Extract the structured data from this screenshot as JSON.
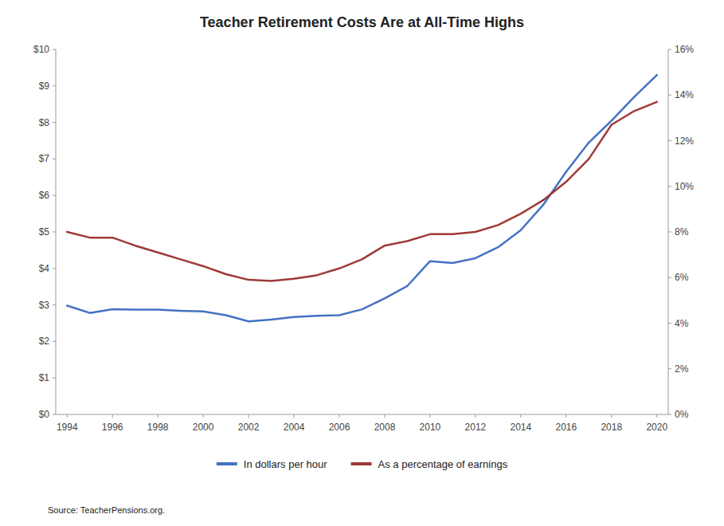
{
  "chart_data": {
    "type": "line",
    "title": "Teacher Retirement Costs Are at All-Time Highs",
    "annotations": [
      "Source: TeacherPensions.org."
    ],
    "x": [
      1994,
      1995,
      1996,
      1997,
      1998,
      1999,
      2000,
      2001,
      2002,
      2003,
      2004,
      2005,
      2006,
      2007,
      2008,
      2009,
      2010,
      2011,
      2012,
      2013,
      2014,
      2015,
      2016,
      2017,
      2018,
      2019,
      2020
    ],
    "xlim": [
      1993.5,
      2020.5
    ],
    "xticks": [
      1994,
      1996,
      1998,
      2000,
      2002,
      2004,
      2006,
      2008,
      2010,
      2012,
      2014,
      2016,
      2018,
      2020
    ],
    "ylim": [
      0,
      10
    ],
    "yticks": [
      {
        "value": 0,
        "label": "$0"
      },
      {
        "value": 1,
        "label": "$1"
      },
      {
        "value": 2,
        "label": "$2"
      },
      {
        "value": 3,
        "label": "$3"
      },
      {
        "value": 4,
        "label": "$4"
      },
      {
        "value": 5,
        "label": "$5"
      },
      {
        "value": 6,
        "label": "$6"
      },
      {
        "value": 7,
        "label": "$7"
      },
      {
        "value": 8,
        "label": "$8"
      },
      {
        "value": 9,
        "label": "$9"
      },
      {
        "value": 10,
        "label": "$10"
      }
    ],
    "y2lim": [
      0,
      0.16
    ],
    "y2ticks": [
      {
        "value": 0,
        "label": "0%"
      },
      {
        "value": 0.02,
        "label": "2%"
      },
      {
        "value": 0.04,
        "label": "4%"
      },
      {
        "value": 0.06,
        "label": "6%"
      },
      {
        "value": 0.08,
        "label": "8%"
      },
      {
        "value": 0.1,
        "label": "10%"
      },
      {
        "value": 0.12,
        "label": "12%"
      },
      {
        "value": 0.14,
        "label": "14%"
      },
      {
        "value": 0.16,
        "label": "16%"
      }
    ],
    "series": [
      {
        "name": "In dollars per hour",
        "color": "#4472C4",
        "values": [
          2.98,
          2.78,
          2.88,
          2.87,
          2.87,
          2.84,
          2.82,
          2.72,
          2.55,
          2.6,
          2.67,
          2.7,
          2.72,
          2.88,
          3.18,
          3.52,
          4.2,
          4.15,
          4.28,
          4.58,
          5.05,
          5.75,
          6.65,
          7.45,
          8.05,
          8.7,
          9.3
        ]
      },
      {
        "name": "As a percentage of earnings",
        "color": "#9E3A38",
        "axis": "y2",
        "values": [
          0.08,
          0.0775,
          0.0775,
          0.074,
          0.071,
          0.068,
          0.065,
          0.0615,
          0.059,
          0.0585,
          0.0595,
          0.061,
          0.064,
          0.068,
          0.074,
          0.076,
          0.079,
          0.079,
          0.08,
          0.083,
          0.088,
          0.094,
          0.102,
          0.112,
          0.127,
          0.133,
          0.137
        ]
      }
    ],
    "grid": false,
    "legend": "bottom"
  }
}
